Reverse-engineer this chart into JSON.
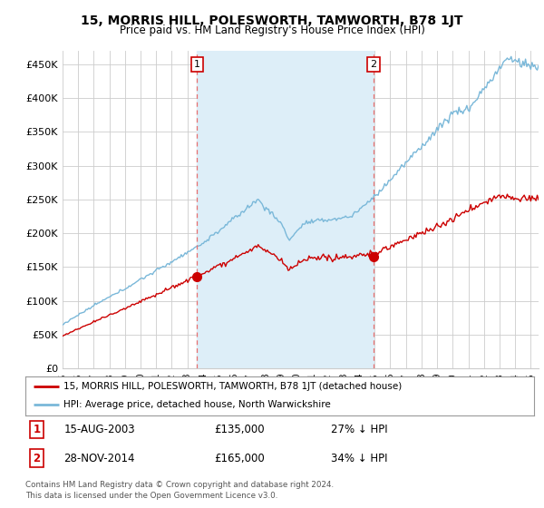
{
  "title": "15, MORRIS HILL, POLESWORTH, TAMWORTH, B78 1JT",
  "subtitle": "Price paid vs. HM Land Registry's House Price Index (HPI)",
  "ylabel_ticks": [
    "£0",
    "£50K",
    "£100K",
    "£150K",
    "£200K",
    "£250K",
    "£300K",
    "£350K",
    "£400K",
    "£450K"
  ],
  "ytick_values": [
    0,
    50000,
    100000,
    150000,
    200000,
    250000,
    300000,
    350000,
    400000,
    450000
  ],
  "ylim": [
    0,
    470000
  ],
  "xlim_start": 1995.0,
  "xlim_end": 2025.5,
  "hpi_color": "#7ab8d9",
  "price_color": "#cc0000",
  "shade_color": "#ddeef8",
  "marker1_x": 2003.62,
  "marker1_y": 135000,
  "marker1_label": "15-AUG-2003",
  "marker1_price": "£135,000",
  "marker1_note": "27% ↓ HPI",
  "marker2_x": 2014.91,
  "marker2_y": 165000,
  "marker2_label": "28-NOV-2014",
  "marker2_price": "£165,000",
  "marker2_note": "34% ↓ HPI",
  "vline_color": "#e87070",
  "legend_line1": "15, MORRIS HILL, POLESWORTH, TAMWORTH, B78 1JT (detached house)",
  "legend_line2": "HPI: Average price, detached house, North Warwickshire",
  "footer1": "Contains HM Land Registry data © Crown copyright and database right 2024.",
  "footer2": "This data is licensed under the Open Government Licence v3.0.",
  "bg_color": "#ffffff",
  "grid_color": "#cccccc"
}
